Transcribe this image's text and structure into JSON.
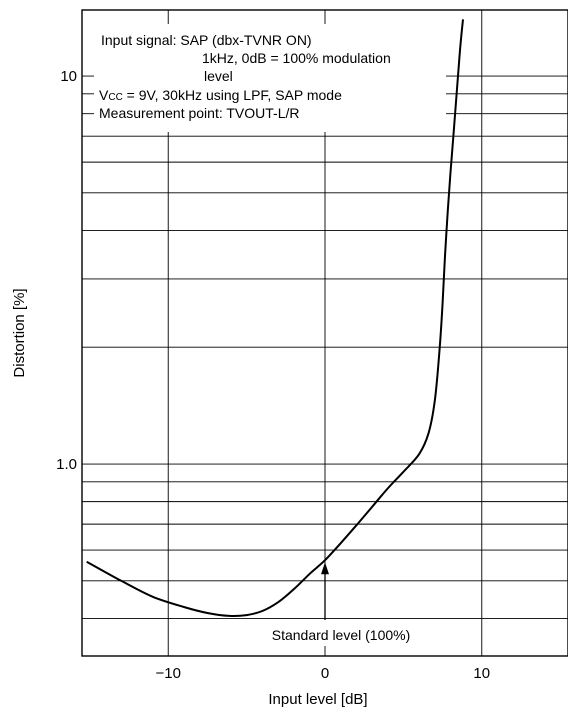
{
  "chart_data": {
    "type": "line",
    "title": "",
    "xlabel": "Input level [dB]",
    "ylabel": "Distortion [%]",
    "x_scale": "linear",
    "y_scale": "log",
    "xlim": [
      -15.5,
      15.5
    ],
    "ylim": [
      0.32,
      14.8
    ],
    "grid": true,
    "x_ticks": [
      {
        "value": -10,
        "label": "−10"
      },
      {
        "value": 0,
        "label": "0"
      },
      {
        "value": 10,
        "label": "10"
      }
    ],
    "y_ticks": [
      {
        "value": 1.0,
        "label": "1.0"
      },
      {
        "value": 10,
        "label": "10"
      }
    ],
    "series": [
      {
        "x": [
          -15.2,
          -13,
          -11,
          -9,
          -7.5,
          -6.1,
          -5,
          -4,
          -3,
          -2,
          -1,
          0,
          1,
          2,
          3,
          4,
          5,
          6,
          6.6,
          7.0,
          7.3,
          7.5,
          7.65,
          7.8,
          8.0,
          8.3,
          8.6,
          8.8
        ],
        "y": [
          0.56,
          0.5,
          0.455,
          0.428,
          0.413,
          0.406,
          0.408,
          0.418,
          0.44,
          0.475,
          0.52,
          0.565,
          0.625,
          0.695,
          0.775,
          0.865,
          0.955,
          1.06,
          1.2,
          1.45,
          1.95,
          2.6,
          3.4,
          4.3,
          5.6,
          8.0,
          11.5,
          14.0
        ]
      }
    ],
    "annotations": [
      {
        "text": "Standard level (100%)",
        "x": 0,
        "y": 0.565
      }
    ],
    "notes": [
      "Input signal:  SAP (dbx-TVNR ON)",
      "1kHz, 0dB = 100% modulation",
      "level",
      "V",
      "CC",
      " = 9V, 30kHz using LPF, SAP mode",
      "Measurement point: TVOUT-L/R"
    ]
  }
}
